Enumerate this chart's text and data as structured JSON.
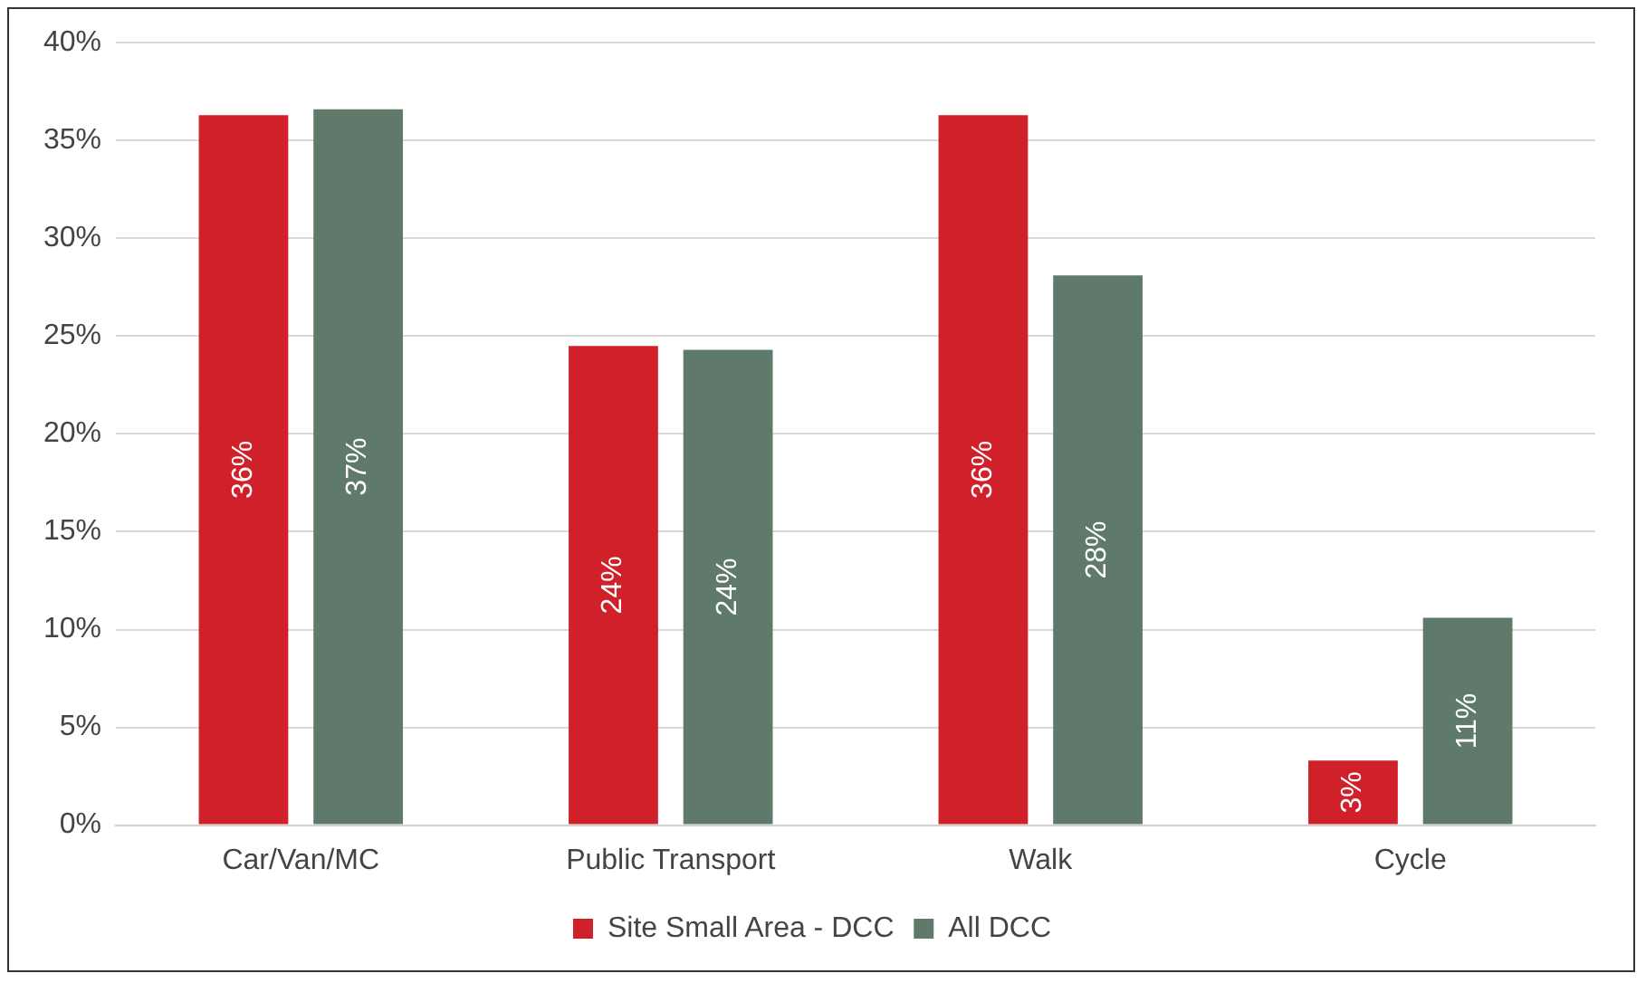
{
  "chart_data": {
    "type": "bar",
    "categories": [
      "Car/Van/MC",
      "Public Transport",
      "Walk",
      "Cycle"
    ],
    "series": [
      {
        "name": "Site Small Area - DCC",
        "color": "#d0202a",
        "values": [
          36.3,
          24.5,
          36.3,
          3.3
        ],
        "value_labels": [
          "36%",
          "24%",
          "36%",
          "3%"
        ]
      },
      {
        "name": "All DCC",
        "color": "#5f7a6a",
        "values": [
          36.6,
          24.3,
          28.1,
          10.6
        ],
        "value_labels": [
          "37%",
          "24%",
          "28%",
          "11%"
        ]
      }
    ],
    "ylim": [
      0,
      40
    ],
    "yticks": [
      {
        "value": 0,
        "label": "0%"
      },
      {
        "value": 5,
        "label": "5%"
      },
      {
        "value": 10,
        "label": "10%"
      },
      {
        "value": 15,
        "label": "15%"
      },
      {
        "value": 20,
        "label": "20%"
      },
      {
        "value": 25,
        "label": "25%"
      },
      {
        "value": 30,
        "label": "30%"
      },
      {
        "value": 35,
        "label": "35%"
      },
      {
        "value": 40,
        "label": "40%"
      }
    ],
    "grid": "y",
    "legend": "bottom"
  }
}
